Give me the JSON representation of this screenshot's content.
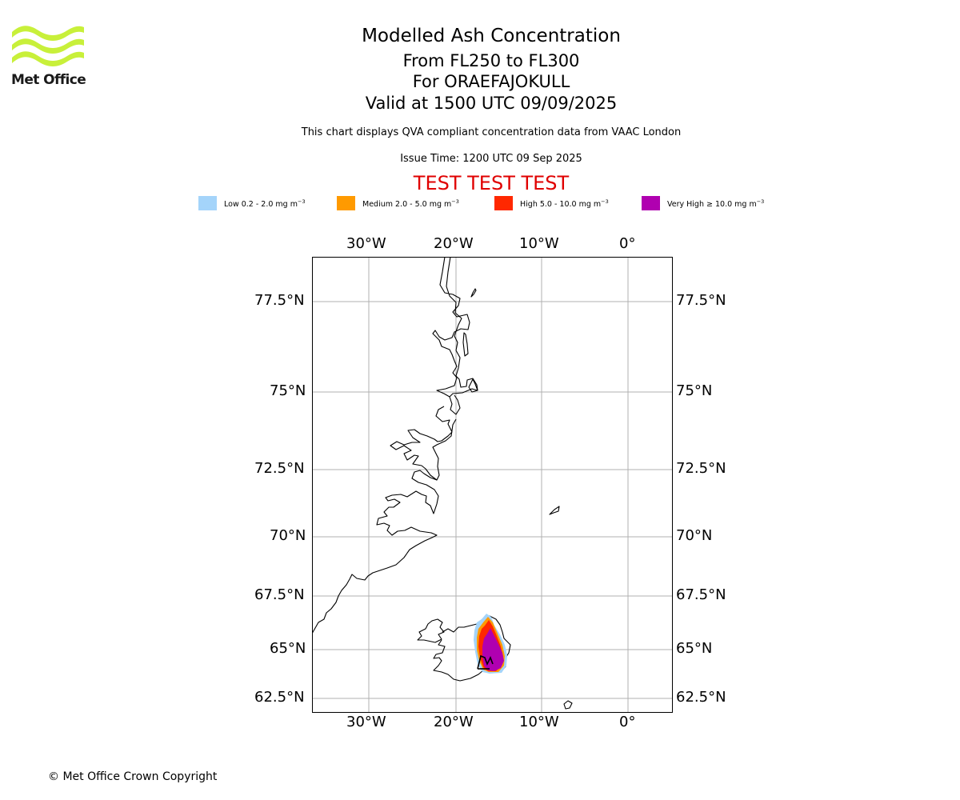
{
  "logo": {
    "text": "Met Office",
    "color": "#c8f03a"
  },
  "header": {
    "title": "Modelled Ash Concentration",
    "levels": "From FL250 to FL300",
    "volcano": "For ORAEFAJOKULL",
    "valid": "Valid at 1500 UTC 09/09/2025",
    "description": "This chart displays QVA compliant concentration data from VAAC London",
    "issue_time": "Issue Time: 1200 UTC 09 Sep 2025",
    "test_banner": "TEST TEST TEST"
  },
  "legend": [
    {
      "label": "Low 0.2 - 2.0 mg m",
      "unit_exp": "−3",
      "color": "#a4d4fa"
    },
    {
      "label": "Medium 2.0 - 5.0 mg m",
      "unit_exp": "−3",
      "color": "#ff9a00"
    },
    {
      "label": "High 5.0 - 10.0 mg m",
      "unit_exp": "−3",
      "color": "#ff2800"
    },
    {
      "label": "Very High  ≥  10.0 mg m",
      "unit_exp": "−3",
      "color": "#b000b0"
    }
  ],
  "map": {
    "lon_ticks": [
      "30°W",
      "20°W",
      "10°W",
      "0°"
    ],
    "lat_ticks": [
      "77.5°N",
      "75°N",
      "72.5°N",
      "70°N",
      "67.5°N",
      "65°N",
      "62.5°N"
    ],
    "gridlines": true,
    "gridline_color": "#b0b0b0"
  },
  "footer": {
    "copyright": "© Met Office Crown Copyright"
  }
}
